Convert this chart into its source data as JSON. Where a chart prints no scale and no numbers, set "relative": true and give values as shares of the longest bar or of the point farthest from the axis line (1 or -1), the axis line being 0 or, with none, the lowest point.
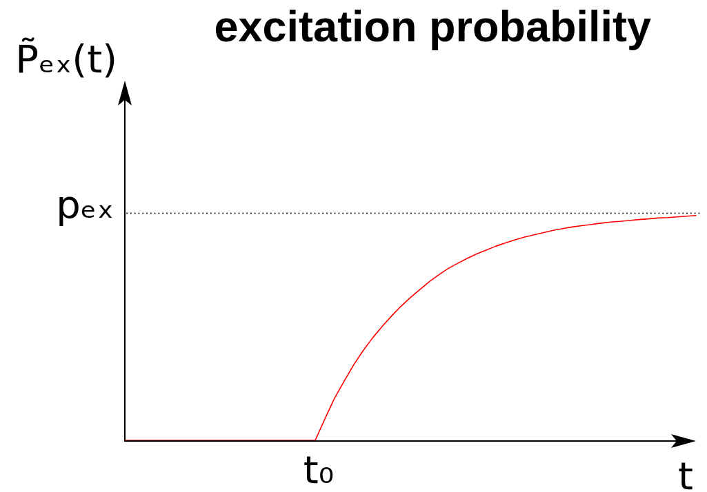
{
  "chart_data": {
    "type": "line",
    "title": "excitation probability",
    "xlabel": "t",
    "ylabel": "P̃ₑₓ(t)",
    "categories": [
      null,
      null,
      null,
      null,
      null,
      null,
      null,
      null,
      null,
      null,
      null,
      null,
      null,
      null,
      null,
      null,
      null,
      null,
      null,
      null,
      null,
      null,
      null,
      null,
      null,
      null,
      null,
      null,
      null,
      null,
      null,
      null,
      null,
      null,
      null,
      null,
      null,
      null,
      null,
      null,
      null,
      null,
      null,
      null,
      null,
      null,
      null,
      null,
      null,
      null,
      null,
      null,
      null,
      null,
      null,
      null,
      null,
      null,
      null,
      null,
      null
    ],
    "values": [
      0,
      0,
      0,
      0,
      0,
      0,
      0,
      0,
      0,
      0,
      0,
      0,
      0,
      0,
      0,
      0,
      0,
      0,
      0,
      0,
      0,
      0.094,
      0.185,
      0.26,
      0.333,
      0.397,
      0.454,
      0.505,
      0.552,
      0.596,
      0.635,
      0.671,
      0.706,
      0.737,
      0.765,
      0.788,
      0.81,
      0.83,
      0.847,
      0.864,
      0.878,
      0.892,
      0.904,
      0.914,
      0.924,
      0.934,
      0.942,
      0.949,
      0.955,
      0.96,
      0.966,
      0.971,
      0.974,
      0.978,
      0.982,
      0.985,
      0.989,
      0.991,
      0.994,
      0.997,
      1
    ],
    "color": "#ff0000",
    "relative": true,
    "ref_lines": [
      {
        "axis": "y",
        "value": 1.01,
        "label": "pₑₓ",
        "color": "#000000",
        "line_style": "dotted"
      }
    ],
    "annotations": [
      "t₀"
    ]
  }
}
